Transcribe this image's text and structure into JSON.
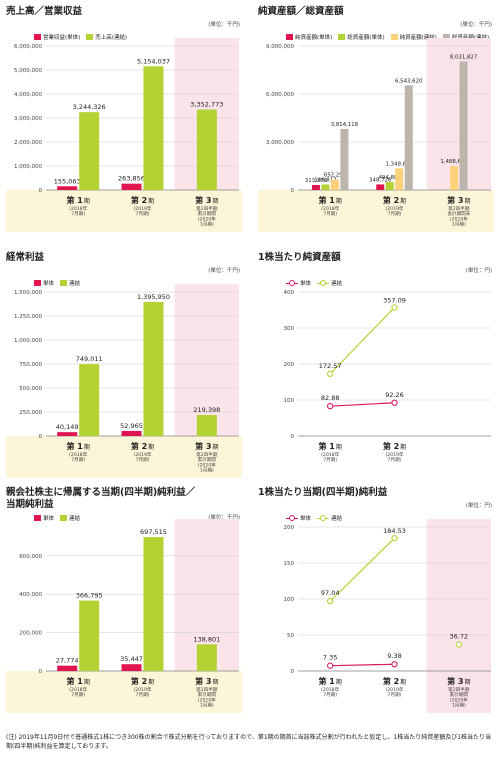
{
  "colors": {
    "tan_band": "#fdf5d8",
    "pink_band": "#fbe3ea",
    "tan_border": "#e4d49c",
    "single": "#e0144e",
    "consolidated": "#b3d334",
    "total_assets_cons": "#bdb5ac",
    "net_assets_cons": "#fdd07a"
  },
  "axis_labels": {
    "p1": {
      "num": "第 1",
      "suffix": "期",
      "sub": "(2018年\n7月期)"
    },
    "p2": {
      "num": "第 2",
      "suffix": "期",
      "sub": "(2019年\n7月期)"
    },
    "p3_cum": {
      "num": "第 3",
      "suffix": "期",
      "sub": "第2四半期\n累計期間\n(2020年\n1月期)"
    },
    "p3_end": {
      "num": "第 3",
      "suffix": "期",
      "sub": "第2四半期\n会計期間末\n(2020年\n1月期)"
    }
  },
  "chart_data": [
    {
      "id": "sales",
      "type": "bar",
      "title": "売上高／営業収益",
      "unit": "(単位：千円)",
      "yticks": [
        "0",
        "1,000,000",
        "2,000,000",
        "3,000,000",
        "4,000,000",
        "5,000,000",
        "6,000,000"
      ],
      "ylim": [
        0,
        6000000
      ],
      "series": [
        {
          "name": "営業収益(単体)",
          "color": "#e0144e",
          "values": [
            155063,
            263856,
            null
          ],
          "labels": [
            "155,063",
            "263,856",
            ""
          ]
        },
        {
          "name": "売上高(連結)",
          "color": "#b3d334",
          "values": [
            3244326,
            5154037,
            3352773
          ],
          "labels": [
            "3,244,326",
            "5,154,037",
            "3,352,773"
          ]
        }
      ],
      "period3": "p3_cum"
    },
    {
      "id": "assets",
      "type": "bar",
      "title": "純資産額／総資産額",
      "unit": "(単位：千円)",
      "yticks": [
        "0",
        "3,000,000",
        "6,000,000",
        "9,000,000"
      ],
      "ylim": [
        0,
        9000000
      ],
      "series": [
        {
          "name": "純資産額(単体)",
          "color": "#e0144e",
          "values": [
            313278,
            348726,
            null
          ],
          "labels": [
            "313,278",
            "348,726",
            ""
          ]
        },
        {
          "name": "総資産額(単体)",
          "color": "#b3d334",
          "values": [
            346817,
            494888,
            null
          ],
          "labels": [
            "346,817",
            "494,888",
            ""
          ]
        },
        {
          "name": "純資産額(連結)",
          "color": "#fdd07a",
          "values": [
            652299,
            1349814,
            1488616
          ],
          "labels": [
            "652,299",
            "1,349,814",
            "1,488,616"
          ]
        },
        {
          "name": "総資産額(連結)",
          "color": "#bdb5ac",
          "values": [
            3814118,
            6543620,
            8031827
          ],
          "labels": [
            "3,814,118",
            "6,543,620",
            "8,031,827"
          ]
        }
      ],
      "period3": "p3_end"
    },
    {
      "id": "ordinary",
      "type": "bar",
      "title": "経常利益",
      "unit": "(単位：千円)",
      "yticks": [
        "0",
        "250,000",
        "500,000",
        "750,000",
        "1,000,000",
        "1,250,000",
        "1,500,000"
      ],
      "ylim": [
        0,
        1500000
      ],
      "series": [
        {
          "name": "単体",
          "color": "#e0144e",
          "values": [
            40149,
            52965,
            null
          ],
          "labels": [
            "40,149",
            "52,965",
            ""
          ]
        },
        {
          "name": "連結",
          "color": "#b3d334",
          "values": [
            749011,
            1395950,
            219398
          ],
          "labels": [
            "749,011",
            "1,395,950",
            "219,398"
          ]
        }
      ],
      "period3": "p3_cum"
    },
    {
      "id": "bps",
      "type": "line",
      "title": "1株当たり純資産額",
      "unit": "(単位：円)",
      "yticks": [
        "0",
        "100",
        "200",
        "300",
        "400"
      ],
      "ylim": [
        0,
        400
      ],
      "series": [
        {
          "name": "単体",
          "color": "#d81b60",
          "values": [
            82.88,
            92.26
          ],
          "labels": [
            "82.88",
            "92.26"
          ]
        },
        {
          "name": "連結",
          "color": "#b3d334",
          "values": [
            172.57,
            357.09
          ],
          "labels": [
            "172.57",
            "357.09"
          ]
        }
      ],
      "periods": 2
    },
    {
      "id": "netincome",
      "type": "bar",
      "title": "親会社株主に帰属する当期(四半期)純利益／\n当期純利益",
      "unit": "(単位：千円)",
      "yticks": [
        "0",
        "200,000",
        "400,000",
        "600,000"
      ],
      "ylim": [
        0,
        750000
      ],
      "series": [
        {
          "name": "単体",
          "color": "#e0144e",
          "values": [
            27774,
            35447,
            null
          ],
          "labels": [
            "27,774",
            "35,447",
            ""
          ]
        },
        {
          "name": "連結",
          "color": "#b3d334",
          "values": [
            366795,
            697515,
            138801
          ],
          "labels": [
            "366,795",
            "697,515",
            "138,801"
          ]
        }
      ],
      "period3": "p3_cum"
    },
    {
      "id": "eps",
      "type": "line",
      "title": "1株当たり当期(四半期)純利益",
      "unit": "(単位：円)",
      "yticks": [
        "0",
        "50",
        "100",
        "150",
        "200"
      ],
      "ylim": [
        0,
        200
      ],
      "series": [
        {
          "name": "単体",
          "color": "#d81b60",
          "values": [
            7.35,
            9.38,
            null
          ],
          "labels": [
            "7.35",
            "9.38",
            ""
          ]
        },
        {
          "name": "連結",
          "color": "#b3d334",
          "values": [
            97.04,
            184.53,
            36.72
          ],
          "labels": [
            "97.04",
            "184.53",
            "36.72"
          ]
        }
      ],
      "periods": 3,
      "period3": "p3_cum"
    }
  ],
  "note": "(注) 2019年11月9日付で普通株式1株につき300株の割合で株式分割を行っておりますので、第1期の期首に当該株式分割が行われたと仮定し、1株当たり純資産額及び1株当たり当期(四半期)純利益を算定しております。"
}
